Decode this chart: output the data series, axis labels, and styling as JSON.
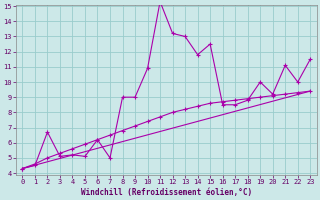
{
  "xlabel": "Windchill (Refroidissement éolien,°C)",
  "bg_color": "#cce8e8",
  "grid_color": "#99cccc",
  "line_color": "#aa00aa",
  "ylim": [
    4,
    15
  ],
  "xlim": [
    -0.5,
    23.5
  ],
  "yticks": [
    4,
    5,
    6,
    7,
    8,
    9,
    10,
    11,
    12,
    13,
    14,
    15
  ],
  "xticks": [
    0,
    1,
    2,
    3,
    4,
    5,
    6,
    7,
    8,
    9,
    10,
    11,
    12,
    13,
    14,
    15,
    16,
    17,
    18,
    19,
    20,
    21,
    22,
    23
  ],
  "series1_x": [
    0,
    1,
    2,
    3,
    4,
    5,
    6,
    7,
    8,
    9,
    10,
    11,
    12,
    13,
    14,
    15,
    16,
    17,
    18,
    19,
    20,
    21,
    22,
    23
  ],
  "series1_y": [
    4.3,
    4.5,
    6.7,
    5.1,
    5.2,
    5.1,
    6.2,
    5.0,
    9.0,
    9.0,
    10.9,
    15.3,
    13.2,
    13.0,
    11.8,
    12.5,
    8.5,
    8.5,
    8.8,
    10.0,
    9.2,
    11.1,
    10.0,
    11.5
  ],
  "series2_x": [
    0,
    1,
    2,
    3,
    4,
    5,
    6,
    7,
    8,
    9,
    10,
    11,
    12,
    13,
    14,
    15,
    16,
    17,
    18,
    19,
    20,
    21,
    22,
    23
  ],
  "series2_y": [
    4.3,
    4.6,
    5.0,
    5.3,
    5.6,
    5.9,
    6.2,
    6.5,
    6.8,
    7.1,
    7.4,
    7.7,
    8.0,
    8.2,
    8.4,
    8.6,
    8.7,
    8.8,
    8.9,
    9.0,
    9.1,
    9.2,
    9.3,
    9.4
  ],
  "series3_x": [
    0,
    23
  ],
  "series3_y": [
    4.3,
    9.4
  ],
  "tick_fontsize": 5,
  "xlabel_fontsize": 5.5
}
